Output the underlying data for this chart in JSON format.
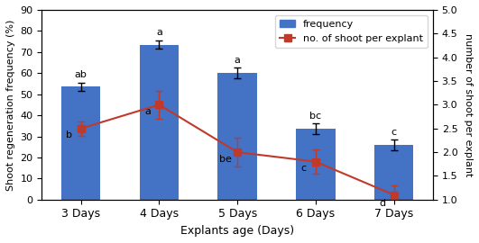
{
  "categories": [
    "3 Days",
    "4 Days",
    "5 Days",
    "6 Days",
    "7 Days"
  ],
  "bar_values": [
    53.5,
    73.5,
    60.0,
    33.5,
    26.0
  ],
  "bar_errors": [
    2.0,
    2.0,
    2.5,
    2.5,
    2.5
  ],
  "bar_labels": [
    "ab",
    "a",
    "a",
    "bc",
    "c"
  ],
  "line_values": [
    2.5,
    3.0,
    2.0,
    1.8,
    1.1
  ],
  "line_errors": [
    0.15,
    0.3,
    0.3,
    0.25,
    0.2
  ],
  "line_labels": [
    "b",
    "a",
    "be",
    "c",
    "d"
  ],
  "bar_color": "#4472C4",
  "line_color": "#C0392B",
  "line_marker": "s",
  "xlabel": "Explants age (Days)",
  "ylabel_left": "Shoot regeneration frequency (%)",
  "ylabel_right": "number of shoot per explant",
  "ylim_left": [
    0,
    90
  ],
  "ylim_right": [
    1,
    5
  ],
  "yticks_left": [
    0,
    10,
    20,
    30,
    40,
    50,
    60,
    70,
    80,
    90
  ],
  "yticks_right": [
    1.0,
    1.5,
    2.0,
    2.5,
    3.0,
    3.5,
    4.0,
    4.5,
    5.0
  ],
  "legend_freq": "frequency",
  "legend_line": "no. of shoot per explant",
  "figsize": [
    5.31,
    2.7
  ],
  "dpi": 100
}
